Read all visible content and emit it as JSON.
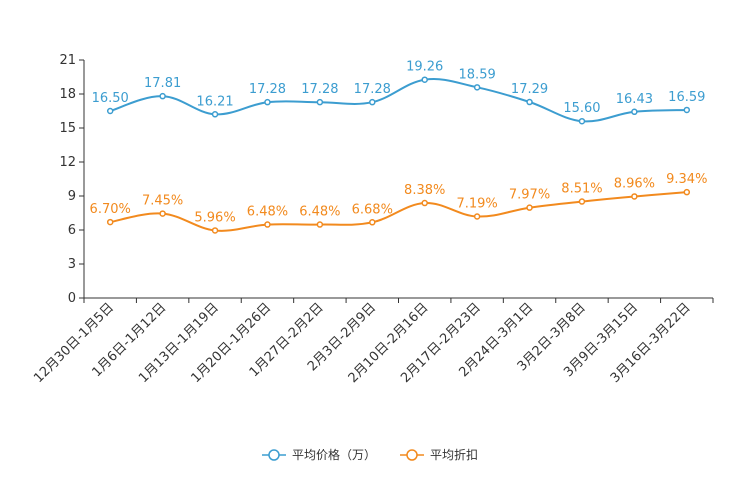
{
  "chart_data": {
    "type": "line",
    "categories": [
      "12月30日-1月5日",
      "1月6日-1月12日",
      "1月13日-1月19日",
      "1月20日-1月26日",
      "1月27日-2月2日",
      "2月3日-2月9日",
      "2月10日-2月16日",
      "2月17日-2月23日",
      "2月24日-3月1日",
      "3月2日-3月8日",
      "3月9日-3月15日",
      "3月16日-3月22日"
    ],
    "ylim": [
      0,
      21
    ],
    "yticks": [
      0,
      3,
      6,
      9,
      12,
      15,
      18,
      21
    ],
    "series": [
      {
        "name": "平均价格（万）",
        "color": "#3c9dd0",
        "values": [
          16.5,
          17.81,
          16.21,
          17.28,
          17.28,
          17.28,
          19.26,
          18.59,
          17.29,
          15.6,
          16.43,
          16.59
        ],
        "labels": [
          "16.50",
          "17.81",
          "16.21",
          "17.28",
          "17.28",
          "17.28",
          "19.26",
          "18.59",
          "17.29",
          "15.60",
          "16.43",
          "16.59"
        ]
      },
      {
        "name": "平均折扣",
        "color": "#f28a1e",
        "values": [
          6.7,
          7.45,
          5.96,
          6.48,
          6.48,
          6.68,
          8.38,
          7.19,
          7.97,
          8.51,
          8.96,
          9.34
        ],
        "labels": [
          "6.70%",
          "7.45%",
          "5.96%",
          "6.48%",
          "6.48%",
          "6.68%",
          "8.38%",
          "7.19%",
          "7.97%",
          "8.51%",
          "8.96%",
          "9.34%"
        ]
      }
    ],
    "legend_position": "bottom-center"
  }
}
